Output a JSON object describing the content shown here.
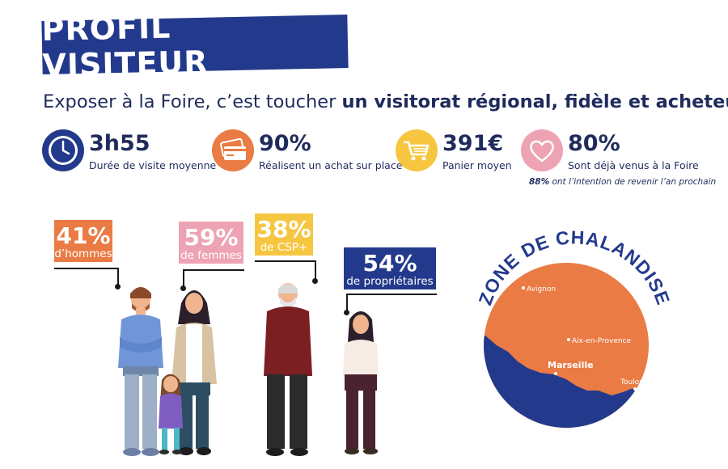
{
  "title": "PROFIL VISITEUR",
  "subtitle": {
    "prefix": "Exposer à la Foire, c’est toucher ",
    "bold": "un visitorat régional, fidèle et acheteur !"
  },
  "stats": [
    {
      "value": "3h55",
      "label": "Durée de visite moyenne",
      "icon": "clock-icon",
      "color": "#233a8c"
    },
    {
      "value": "90%",
      "label": "Réalisent un achat sur place",
      "icon": "credit-card-icon",
      "color": "#ea7b44"
    },
    {
      "value": "391€",
      "label": "Panier moyen",
      "icon": "shopping-cart-icon",
      "color": "#f6c641"
    },
    {
      "value": "80%",
      "label": "Sont déjà venus à la Foire",
      "icon": "heart-icon",
      "color": "#eea3b4"
    }
  ],
  "note": {
    "bold": "88%",
    "rest": " ont l’intention de revenir l’an prochain"
  },
  "tags": [
    {
      "pct": "41%",
      "text": "d’hommes",
      "color": "#ea7b44"
    },
    {
      "pct": "59%",
      "text": "de femmes",
      "color": "#eea3b4"
    },
    {
      "pct": "38%",
      "text": "de CSP+",
      "color": "#f6c641"
    },
    {
      "pct": "54%",
      "text": "de propriétaires",
      "color": "#233a8c"
    }
  ],
  "zone": {
    "title": "ZONE DE CHALANDISE",
    "cities": [
      "Avignon",
      "Aix-en-Provence",
      "Marseille",
      "Toulon"
    ],
    "land_color": "#ea7b44",
    "sea_color": "#233a8c"
  }
}
